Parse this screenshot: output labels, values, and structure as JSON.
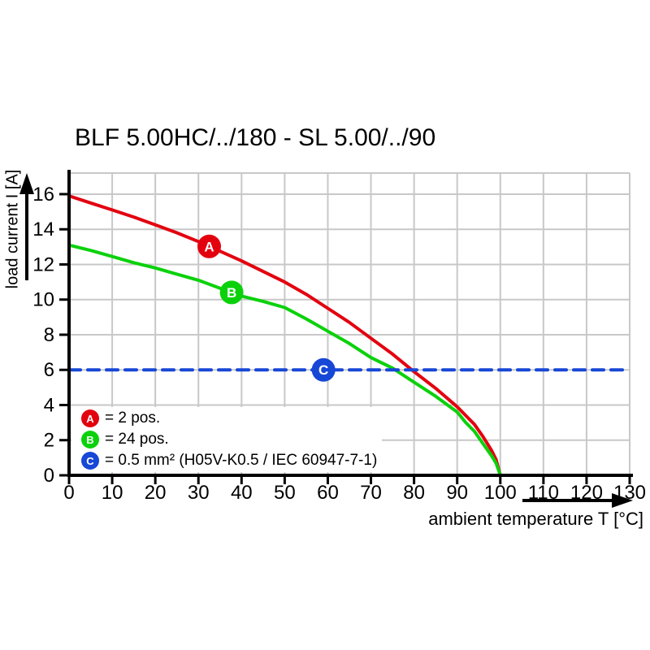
{
  "chart_data": {
    "type": "line",
    "title": "BLF 5.00HC/../180 - SL 5.00/../90",
    "xlabel": "ambient temperature T [°C]",
    "ylabel": "load current I [A]",
    "xlim": [
      0,
      130
    ],
    "ylim": [
      0,
      17.2
    ],
    "xticks": [
      0,
      10,
      20,
      30,
      40,
      50,
      60,
      70,
      80,
      90,
      100,
      110,
      120,
      130
    ],
    "yticks": [
      0,
      2,
      4,
      6,
      8,
      10,
      12,
      14,
      16
    ],
    "grid": true,
    "legend_position": "bottom-left-inside",
    "series": [
      {
        "id": "A",
        "marker_letter": "A",
        "legend": "= 2 pos.",
        "color": "#e3000f",
        "line": "solid",
        "marker_x": 32.5,
        "points": [
          [
            0,
            15.9
          ],
          [
            5,
            15.5
          ],
          [
            10,
            15.1
          ],
          [
            15,
            14.7
          ],
          [
            20,
            14.25
          ],
          [
            25,
            13.8
          ],
          [
            30,
            13.3
          ],
          [
            35,
            12.75
          ],
          [
            40,
            12.2
          ],
          [
            45,
            11.6
          ],
          [
            50,
            11.0
          ],
          [
            55,
            10.3
          ],
          [
            60,
            9.5
          ],
          [
            65,
            8.7
          ],
          [
            70,
            7.8
          ],
          [
            75,
            6.9
          ],
          [
            80,
            5.9
          ],
          [
            85,
            4.95
          ],
          [
            90,
            3.9
          ],
          [
            92,
            3.4
          ],
          [
            94,
            2.9
          ],
          [
            96,
            2.2
          ],
          [
            98,
            1.4
          ],
          [
            99,
            0.9
          ],
          [
            100,
            0
          ]
        ]
      },
      {
        "id": "B",
        "marker_letter": "B",
        "legend": "= 24 pos.",
        "color": "#0bd10b",
        "line": "solid",
        "marker_x": 37.7,
        "points": [
          [
            0,
            13.1
          ],
          [
            5,
            12.8
          ],
          [
            10,
            12.45
          ],
          [
            15,
            12.1
          ],
          [
            20,
            11.8
          ],
          [
            25,
            11.45
          ],
          [
            30,
            11.1
          ],
          [
            35,
            10.65
          ],
          [
            40,
            10.2
          ],
          [
            45,
            9.9
          ],
          [
            50,
            9.55
          ],
          [
            55,
            8.9
          ],
          [
            60,
            8.2
          ],
          [
            65,
            7.5
          ],
          [
            70,
            6.7
          ],
          [
            75,
            6.1
          ],
          [
            80,
            5.3
          ],
          [
            85,
            4.5
          ],
          [
            90,
            3.6
          ],
          [
            92,
            3.0
          ],
          [
            94,
            2.5
          ],
          [
            96,
            1.8
          ],
          [
            98,
            1.1
          ],
          [
            99,
            0.7
          ],
          [
            100,
            0
          ]
        ]
      },
      {
        "id": "C",
        "marker_letter": "C",
        "legend": "= 0.5 mm² (H05V-K0.5 / IEC 60947-7-1)",
        "color": "#1747d6",
        "line": "dashed",
        "marker_x": 59,
        "points": [
          [
            0,
            6
          ],
          [
            130,
            6
          ]
        ]
      }
    ],
    "colors": {
      "axis": "#000000",
      "grid": "#c8c8c8",
      "background": "#ffffff"
    }
  }
}
